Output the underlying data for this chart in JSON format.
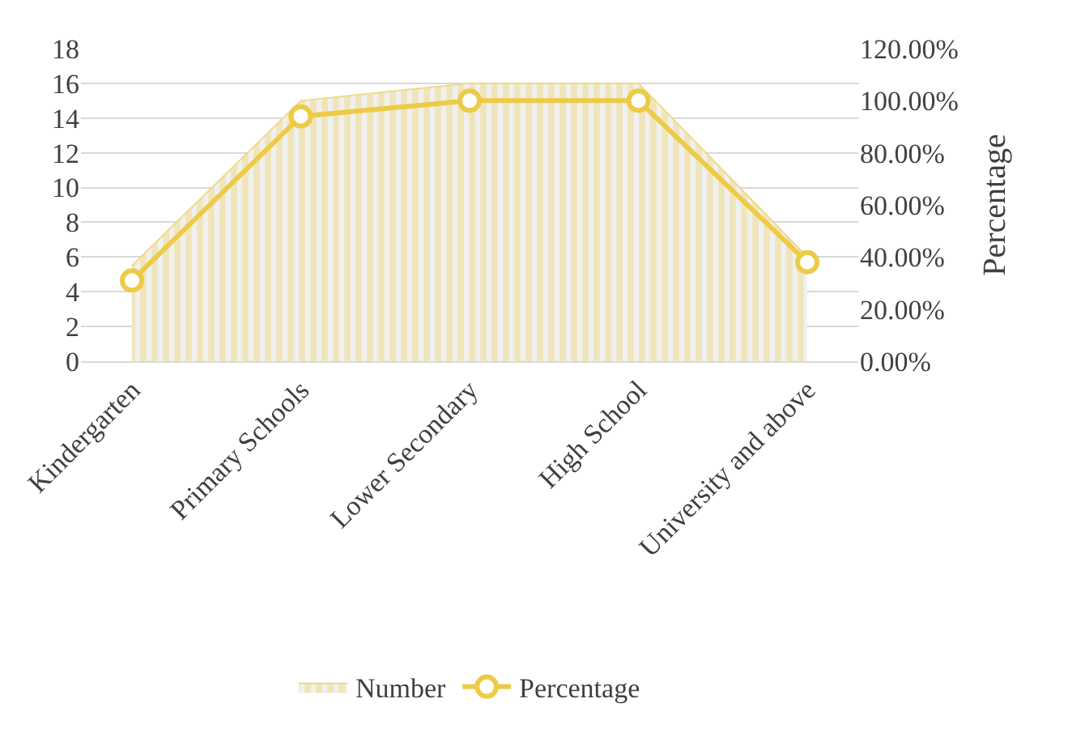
{
  "chart_data": {
    "type": "area",
    "categories": [
      "Kindergarten",
      "Primary Schools",
      "Lower Secondary",
      "High School",
      "University and above"
    ],
    "series": [
      {
        "name": "Number",
        "color": "#f0da84",
        "values": [
          5.5,
          15,
          16,
          16,
          6
        ]
      },
      {
        "name": "Percentage",
        "type": "line",
        "axis": "y2",
        "color": "#edcb47",
        "marker": "circle",
        "values": [
          31,
          94,
          100,
          100,
          38
        ]
      }
    ],
    "y2label": "Percentage",
    "ylim": [
      0,
      18
    ],
    "yticks": [
      0,
      2,
      4,
      6,
      8,
      10,
      12,
      14,
      16,
      18
    ],
    "y2lim": [
      0,
      120
    ],
    "y2ticks": [
      {
        "value": 0,
        "label": "0.00%"
      },
      {
        "value": 20,
        "label": "20.00%"
      },
      {
        "value": 40,
        "label": "40.00%"
      },
      {
        "value": 60,
        "label": "60.00%"
      },
      {
        "value": 80,
        "label": "80.00%"
      },
      {
        "value": 100,
        "label": "100.00%"
      },
      {
        "value": 120,
        "label": "120.00%"
      }
    ],
    "grid": "y",
    "legend": "bottom"
  }
}
